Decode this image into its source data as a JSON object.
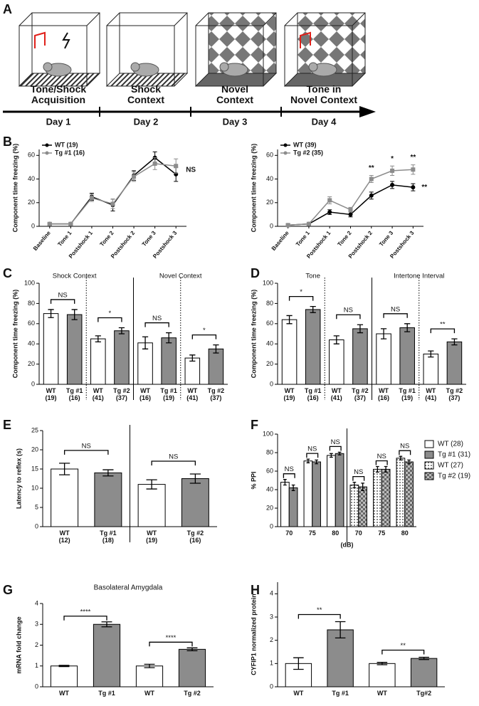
{
  "panel_labels": [
    "A",
    "B",
    "C",
    "D",
    "E",
    "F",
    "G",
    "H"
  ],
  "diagram": {
    "stages": [
      {
        "label": [
          "Tone/Shock",
          "Acquisition"
        ],
        "day": "Day 1"
      },
      {
        "label": [
          "Shock",
          "Context"
        ],
        "day": "Day 2"
      },
      {
        "label": [
          "Novel",
          "Context"
        ],
        "day": "Day 3"
      },
      {
        "label": [
          "Tone in",
          "Novel Context"
        ],
        "day": "Day 4"
      }
    ]
  },
  "chart_data": [
    {
      "type": "line",
      "ylabel": "Component time freezing (%)",
      "categories": [
        "Baseline",
        "Tone 1",
        "Postshock 1",
        "Tone 2",
        "Postshock 2",
        "Tone 3",
        "Postshock 3"
      ],
      "series": [
        {
          "name": "WT (19)",
          "color": "#000000",
          "marker": "circle",
          "values": [
            2,
            2,
            25,
            18,
            43,
            58,
            44
          ],
          "errors": [
            1,
            1,
            3,
            5,
            4,
            5,
            6
          ]
        },
        {
          "name": "Tg #1 (16)",
          "color": "#8c8c8c",
          "marker": "square",
          "values": [
            2,
            2,
            24,
            19,
            42,
            53,
            51
          ],
          "errors": [
            1,
            1,
            3,
            4,
            4,
            5,
            6
          ]
        }
      ],
      "ylim": [
        0,
        65
      ],
      "yticks": [
        0,
        20,
        40,
        60
      ],
      "annotations": [
        "NS"
      ],
      "legend": "upper-left"
    },
    {
      "type": "line",
      "ylabel": "Component time freezing (%)",
      "categories": [
        "Baseline",
        "Tone 1",
        "Postshock 1",
        "Tone 2",
        "Postshock 2",
        "Tone 3",
        "Postshock 3"
      ],
      "series": [
        {
          "name": "WT (39)",
          "color": "#000000",
          "marker": "circle",
          "values": [
            1,
            2,
            12,
            10,
            26,
            35,
            33
          ],
          "errors": [
            1,
            1,
            2,
            2,
            3,
            3,
            3
          ]
        },
        {
          "name": "Tg #2 (35)",
          "color": "#8c8c8c",
          "marker": "square",
          "values": [
            1,
            2,
            22,
            14,
            40,
            47,
            48
          ],
          "errors": [
            1,
            1,
            3,
            2,
            3,
            4,
            4
          ]
        }
      ],
      "ylim": [
        0,
        65
      ],
      "yticks": [
        0,
        20,
        40,
        60
      ],
      "annotations": [
        "**",
        "*",
        "**",
        "**"
      ],
      "legend": "upper-left"
    },
    {
      "type": "bar",
      "ylabel": "Component time freezing (%)",
      "section_titles": [
        "Shock Context",
        "Novel Context"
      ],
      "categories": [
        "WT (19)",
        "Tg #1 (16)",
        "WT (41)",
        "Tg #2 (37)",
        "WT (16)",
        "Tg #1 (19)",
        "WT (41)",
        "Tg #2 (37)"
      ],
      "values": [
        70,
        69,
        45,
        53,
        41,
        46,
        26,
        35
      ],
      "errors": [
        4,
        5,
        3,
        3,
        6,
        5,
        3,
        4
      ],
      "colors": [
        "#ffffff",
        "#8c8c8c",
        "#ffffff",
        "#8c8c8c",
        "#ffffff",
        "#8c8c8c",
        "#ffffff",
        "#8c8c8c"
      ],
      "ylim": [
        0,
        100
      ],
      "yticks": [
        0,
        20,
        40,
        60,
        80,
        100
      ],
      "comparisons": [
        {
          "pair": [
            0,
            1
          ],
          "label": "NS"
        },
        {
          "pair": [
            2,
            3
          ],
          "label": "*"
        },
        {
          "pair": [
            4,
            5
          ],
          "label": "NS"
        },
        {
          "pair": [
            6,
            7
          ],
          "label": "*"
        }
      ]
    },
    {
      "type": "bar",
      "ylabel": "Component time freezing (%)",
      "section_titles": [
        "Tone",
        "Intertone Interval"
      ],
      "categories": [
        "WT (19)",
        "Tg #1 (16)",
        "WT (41)",
        "Tg #2 (37)",
        "WT (16)",
        "Tg #1 (19)",
        "WT (41)",
        "Tg #2 (37)"
      ],
      "values": [
        64,
        74,
        44,
        55,
        50,
        56,
        30,
        42
      ],
      "errors": [
        4,
        3,
        4,
        4,
        5,
        4,
        3,
        3
      ],
      "colors": [
        "#ffffff",
        "#8c8c8c",
        "#ffffff",
        "#8c8c8c",
        "#ffffff",
        "#8c8c8c",
        "#ffffff",
        "#8c8c8c"
      ],
      "ylim": [
        0,
        100
      ],
      "yticks": [
        0,
        20,
        40,
        60,
        80,
        100
      ],
      "comparisons": [
        {
          "pair": [
            0,
            1
          ],
          "label": "*"
        },
        {
          "pair": [
            2,
            3
          ],
          "label": "NS"
        },
        {
          "pair": [
            4,
            5
          ],
          "label": "NS"
        },
        {
          "pair": [
            6,
            7
          ],
          "label": "**"
        }
      ]
    },
    {
      "type": "bar",
      "ylabel": "Latency to reflex (s)",
      "categories": [
        "WT (12)",
        "Tg #1 (18)",
        "WT (19)",
        "Tg #2 (16)"
      ],
      "values": [
        15,
        14,
        11,
        12.5
      ],
      "errors": [
        1.5,
        0.8,
        1.2,
        1.2
      ],
      "colors": [
        "#ffffff",
        "#8c8c8c",
        "#ffffff",
        "#8c8c8c"
      ],
      "ylim": [
        0,
        25
      ],
      "yticks": [
        0,
        5,
        10,
        15,
        20,
        25
      ],
      "comparisons": [
        {
          "pair": [
            0,
            1
          ],
          "label": "NS"
        },
        {
          "pair": [
            2,
            3
          ],
          "label": "NS"
        }
      ]
    },
    {
      "type": "bar",
      "ylabel": "% PPI",
      "xlabel": "(dB)",
      "categories": [
        "70",
        "75",
        "80",
        "70",
        "75",
        "80"
      ],
      "series": [
        {
          "name": "WT (28)",
          "color": "#ffffff",
          "pattern": "none",
          "values": [
            48,
            71,
            77,
            null,
            null,
            null
          ],
          "errors": [
            3,
            2,
            2,
            null,
            null,
            null
          ]
        },
        {
          "name": "Tg #1 (31)",
          "color": "#8c8c8c",
          "pattern": "none",
          "values": [
            42,
            70,
            79,
            null,
            null,
            null
          ],
          "errors": [
            3,
            2,
            1.5,
            null,
            null,
            null
          ]
        },
        {
          "name": "WT (27)",
          "color": "#ffffff",
          "pattern": "dots",
          "values": [
            null,
            null,
            null,
            45,
            62,
            74
          ],
          "errors": [
            null,
            null,
            null,
            3,
            3,
            2
          ]
        },
        {
          "name": "Tg #2 (19)",
          "color": "#8c8c8c",
          "pattern": "checker",
          "values": [
            null,
            null,
            null,
            43,
            62,
            70
          ],
          "errors": [
            null,
            null,
            null,
            4,
            3,
            2
          ]
        }
      ],
      "ylim": [
        0,
        100
      ],
      "yticks": [
        0,
        20,
        40,
        60,
        80,
        100
      ],
      "legend": "right",
      "comparisons": [
        {
          "pair": [
            0,
            0
          ],
          "label": "NS"
        },
        {
          "pair": [
            1,
            1
          ],
          "label": "NS"
        },
        {
          "pair": [
            2,
            2
          ],
          "label": "NS"
        },
        {
          "pair": [
            3,
            3
          ],
          "label": "NS"
        },
        {
          "pair": [
            4,
            4
          ],
          "label": "NS"
        },
        {
          "pair": [
            5,
            5
          ],
          "label": "NS"
        }
      ]
    },
    {
      "type": "bar",
      "title": "Basolateral Amygdala",
      "ylabel": "mRNA fold change",
      "categories": [
        "WT",
        "Tg #1",
        "WT",
        "Tg #2"
      ],
      "values": [
        1,
        3,
        1,
        1.8
      ],
      "errors": [
        0.03,
        0.12,
        0.08,
        0.07
      ],
      "colors": [
        "#ffffff",
        "#8c8c8c",
        "#ffffff",
        "#8c8c8c"
      ],
      "ylim": [
        0,
        4
      ],
      "yticks": [
        0,
        1,
        2,
        3,
        4
      ],
      "comparisons": [
        {
          "pair": [
            0,
            1
          ],
          "label": "****"
        },
        {
          "pair": [
            2,
            3
          ],
          "label": "****"
        }
      ]
    },
    {
      "type": "bar",
      "ylabel": "CYFIP1 normalized protein",
      "categories": [
        "WT",
        "Tg #1",
        "WT",
        "Tg#2"
      ],
      "values": [
        1,
        2.45,
        1,
        1.22
      ],
      "errors": [
        0.25,
        0.35,
        0.05,
        0.05
      ],
      "colors": [
        "#ffffff",
        "#8c8c8c",
        "#ffffff",
        "#8c8c8c"
      ],
      "ylim": [
        0,
        4.5
      ],
      "yticks": [
        0,
        1,
        2,
        3,
        4
      ],
      "comparisons": [
        {
          "pair": [
            0,
            1
          ],
          "label": "**"
        },
        {
          "pair": [
            2,
            3
          ],
          "label": "**"
        }
      ]
    }
  ]
}
